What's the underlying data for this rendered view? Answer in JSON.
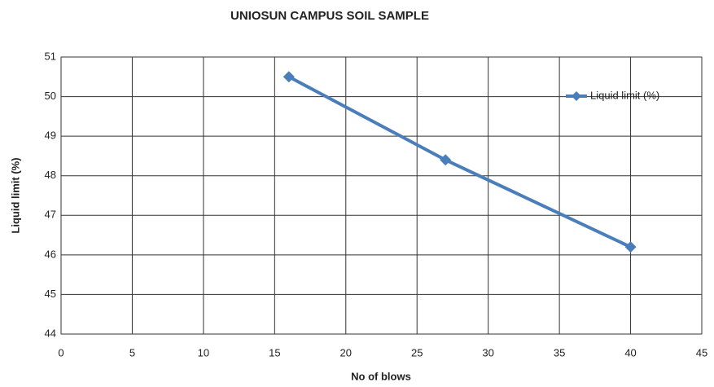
{
  "chart_data": {
    "type": "line",
    "title": "UNIOSUN CAMPUS SOIL SAMPLE",
    "x_label": "No of blows",
    "y_label": "Liquid limit (%)",
    "x": [
      16,
      27,
      40
    ],
    "series": [
      {
        "name": "Liquid limit (%)",
        "color": "#4a7ebb",
        "values": [
          50.5,
          48.4,
          46.2
        ]
      }
    ],
    "xlim": [
      0,
      45
    ],
    "xticks": [
      0,
      5,
      10,
      15,
      20,
      25,
      30,
      35,
      40,
      45
    ],
    "ylim": [
      44,
      51
    ],
    "yticks": [
      44,
      45,
      46,
      47,
      48,
      49,
      50,
      51
    ],
    "grid": true,
    "legend": "upper right"
  }
}
